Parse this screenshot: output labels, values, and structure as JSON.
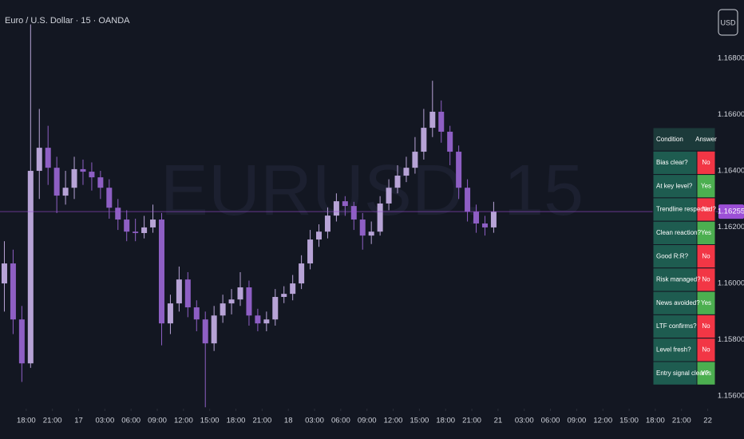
{
  "header": {
    "title": "Euro / U.S. Dollar · 15 · OANDA",
    "currency": "USD",
    "watermark": "EURUSD, 15"
  },
  "chart_data": {
    "type": "candlestick",
    "up_color": "#b7a3d6",
    "down_color": "#8e5fc4",
    "xlim": [
      0,
      330
    ],
    "ylim": [
      1.15555,
      1.17007
    ],
    "x": [
      2,
      6,
      10,
      14,
      18,
      22,
      26,
      30,
      34,
      38,
      42,
      46,
      50,
      54,
      58,
      62,
      66,
      70,
      74,
      78,
      82,
      86,
      90,
      94,
      98,
      102,
      106,
      110,
      114,
      118,
      122,
      126,
      130,
      134,
      138,
      142,
      146,
      150,
      154,
      158,
      162,
      166,
      170,
      174,
      178,
      182,
      186,
      190,
      194,
      198,
      202,
      206,
      210,
      214,
      218,
      222,
      226
    ],
    "ohlc": [
      [
        1.16,
        1.1615,
        1.159,
        1.16071
      ],
      [
        1.16071,
        1.1612,
        1.1582,
        1.15872
      ],
      [
        1.15872,
        1.1592,
        1.1565,
        1.15716
      ],
      [
        1.15716,
        1.1692,
        1.157,
        1.164
      ],
      [
        1.164,
        1.1662,
        1.163,
        1.16482
      ],
      [
        1.16482,
        1.1656,
        1.1635,
        1.16411
      ],
      [
        1.16411,
        1.1645,
        1.1625,
        1.16312
      ],
      [
        1.16312,
        1.164,
        1.1628,
        1.1634
      ],
      [
        1.1634,
        1.1645,
        1.163,
        1.16406
      ],
      [
        1.16406,
        1.1644,
        1.1635,
        1.16397
      ],
      [
        1.16397,
        1.1643,
        1.1633,
        1.16377
      ],
      [
        1.16377,
        1.164,
        1.163,
        1.1634
      ],
      [
        1.1634,
        1.1637,
        1.1623,
        1.16269
      ],
      [
        1.16269,
        1.163,
        1.1619,
        1.16227
      ],
      [
        1.16227,
        1.1626,
        1.1615,
        1.16184
      ],
      [
        1.16184,
        1.1623,
        1.1615,
        1.16179
      ],
      [
        1.16179,
        1.1624,
        1.1616,
        1.16199
      ],
      [
        1.16199,
        1.1628,
        1.1618,
        1.16227
      ],
      [
        1.16227,
        1.1625,
        1.1578,
        1.15858
      ],
      [
        1.15858,
        1.1596,
        1.1582,
        1.15929
      ],
      [
        1.15929,
        1.1606,
        1.159,
        1.16014
      ],
      [
        1.16014,
        1.1604,
        1.1588,
        1.15915
      ],
      [
        1.15915,
        1.1594,
        1.1583,
        1.15872
      ],
      [
        1.15872,
        1.159,
        1.1556,
        1.15787
      ],
      [
        1.15787,
        1.1592,
        1.1576,
        1.15886
      ],
      [
        1.15886,
        1.1596,
        1.1586,
        1.15929
      ],
      [
        1.15929,
        1.1598,
        1.1589,
        1.15943
      ],
      [
        1.15943,
        1.1604,
        1.1592,
        1.15986
      ],
      [
        1.15986,
        1.1601,
        1.1585,
        1.15886
      ],
      [
        1.15886,
        1.1591,
        1.1583,
        1.15858
      ],
      [
        1.15858,
        1.159,
        1.1583,
        1.15872
      ],
      [
        1.15872,
        1.1598,
        1.1585,
        1.15952
      ],
      [
        1.15952,
        1.1599,
        1.1593,
        1.15963
      ],
      [
        1.15963,
        1.1603,
        1.1594,
        1.16
      ],
      [
        1.16,
        1.161,
        1.1598,
        1.16071
      ],
      [
        1.16071,
        1.1619,
        1.1605,
        1.16156
      ],
      [
        1.16156,
        1.1621,
        1.1613,
        1.16184
      ],
      [
        1.16184,
        1.1627,
        1.1616,
        1.16241
      ],
      [
        1.16241,
        1.1632,
        1.1622,
        1.16292
      ],
      [
        1.16292,
        1.1631,
        1.1624,
        1.16275
      ],
      [
        1.16275,
        1.1629,
        1.1619,
        1.16227
      ],
      [
        1.16227,
        1.1625,
        1.1612,
        1.1617
      ],
      [
        1.1617,
        1.1622,
        1.1614,
        1.16184
      ],
      [
        1.16184,
        1.1631,
        1.1617,
        1.16284
      ],
      [
        1.16284,
        1.1637,
        1.1626,
        1.1634
      ],
      [
        1.1634,
        1.1642,
        1.1632,
        1.16383
      ],
      [
        1.16383,
        1.1645,
        1.1636,
        1.16411
      ],
      [
        1.16411,
        1.1652,
        1.1639,
        1.16468
      ],
      [
        1.16468,
        1.1662,
        1.1644,
        1.16553
      ],
      [
        1.16553,
        1.1672,
        1.1652,
        1.1661
      ],
      [
        1.1661,
        1.1665,
        1.165,
        1.16539
      ],
      [
        1.16539,
        1.1656,
        1.1642,
        1.16468
      ],
      [
        1.16468,
        1.1649,
        1.163,
        1.1634
      ],
      [
        1.1634,
        1.1637,
        1.1622,
        1.16255
      ],
      [
        1.16255,
        1.1628,
        1.1618,
        1.16213
      ],
      [
        1.16213,
        1.1624,
        1.1617,
        1.16199
      ],
      [
        1.16199,
        1.1629,
        1.1618,
        1.16255
      ]
    ],
    "last_price": 1.16255,
    "last_price_color": "#9c4fd6",
    "yticks": [
      {
        "value": 1.168,
        "label": "1.16800"
      },
      {
        "value": 1.166,
        "label": "1.16600"
      },
      {
        "value": 1.164,
        "label": "1.16400"
      },
      {
        "value": 1.162,
        "label": "1.16200"
      },
      {
        "value": 1.16,
        "label": "1.16000"
      },
      {
        "value": 1.158,
        "label": "1.15800"
      },
      {
        "value": 1.156,
        "label": "1.15600"
      }
    ],
    "xticks": [
      {
        "value": 12,
        "label": "18:00"
      },
      {
        "value": 24,
        "label": "21:00"
      },
      {
        "value": 36,
        "label": "17"
      },
      {
        "value": 48,
        "label": "03:00"
      },
      {
        "value": 60,
        "label": "06:00"
      },
      {
        "value": 72,
        "label": "09:00"
      },
      {
        "value": 84,
        "label": "12:00"
      },
      {
        "value": 96,
        "label": "15:00"
      },
      {
        "value": 108,
        "label": "18:00"
      },
      {
        "value": 120,
        "label": "21:00"
      },
      {
        "value": 132,
        "label": "18"
      },
      {
        "value": 144,
        "label": "03:00"
      },
      {
        "value": 156,
        "label": "06:00"
      },
      {
        "value": 168,
        "label": "09:00"
      },
      {
        "value": 180,
        "label": "12:00"
      },
      {
        "value": 192,
        "label": "15:00"
      },
      {
        "value": 204,
        "label": "18:00"
      },
      {
        "value": 216,
        "label": "21:00"
      },
      {
        "value": 228,
        "label": "21"
      },
      {
        "value": 240,
        "label": "03:00"
      },
      {
        "value": 252,
        "label": "06:00"
      },
      {
        "value": 264,
        "label": "09:00"
      },
      {
        "value": 276,
        "label": "12:00"
      },
      {
        "value": 288,
        "label": "15:00"
      },
      {
        "value": 300,
        "label": "18:00"
      },
      {
        "value": 312,
        "label": "21:00"
      },
      {
        "value": 324,
        "label": "22"
      }
    ],
    "grid": false
  },
  "table": {
    "columns": [
      "Condition",
      "Answer"
    ],
    "rows": [
      [
        "Bias clear?",
        "No"
      ],
      [
        "At key level?",
        "Yes"
      ],
      [
        "Trendline respected?",
        "No"
      ],
      [
        "Clean reaction?",
        "Yes"
      ],
      [
        "Good R:R?",
        "No"
      ],
      [
        "Risk managed?",
        "No"
      ],
      [
        "News avoided?",
        "Yes"
      ],
      [
        "LTF confirms?",
        "No"
      ],
      [
        "Level fresh?",
        "No"
      ],
      [
        "Entry signal clear?",
        "Yes"
      ]
    ],
    "answer_colors": [
      "#f23645",
      "#4caf50",
      "#f23645",
      "#4caf50",
      "#f23645",
      "#f23645",
      "#4caf50",
      "#f23645",
      "#f23645",
      "#4caf50"
    ]
  }
}
